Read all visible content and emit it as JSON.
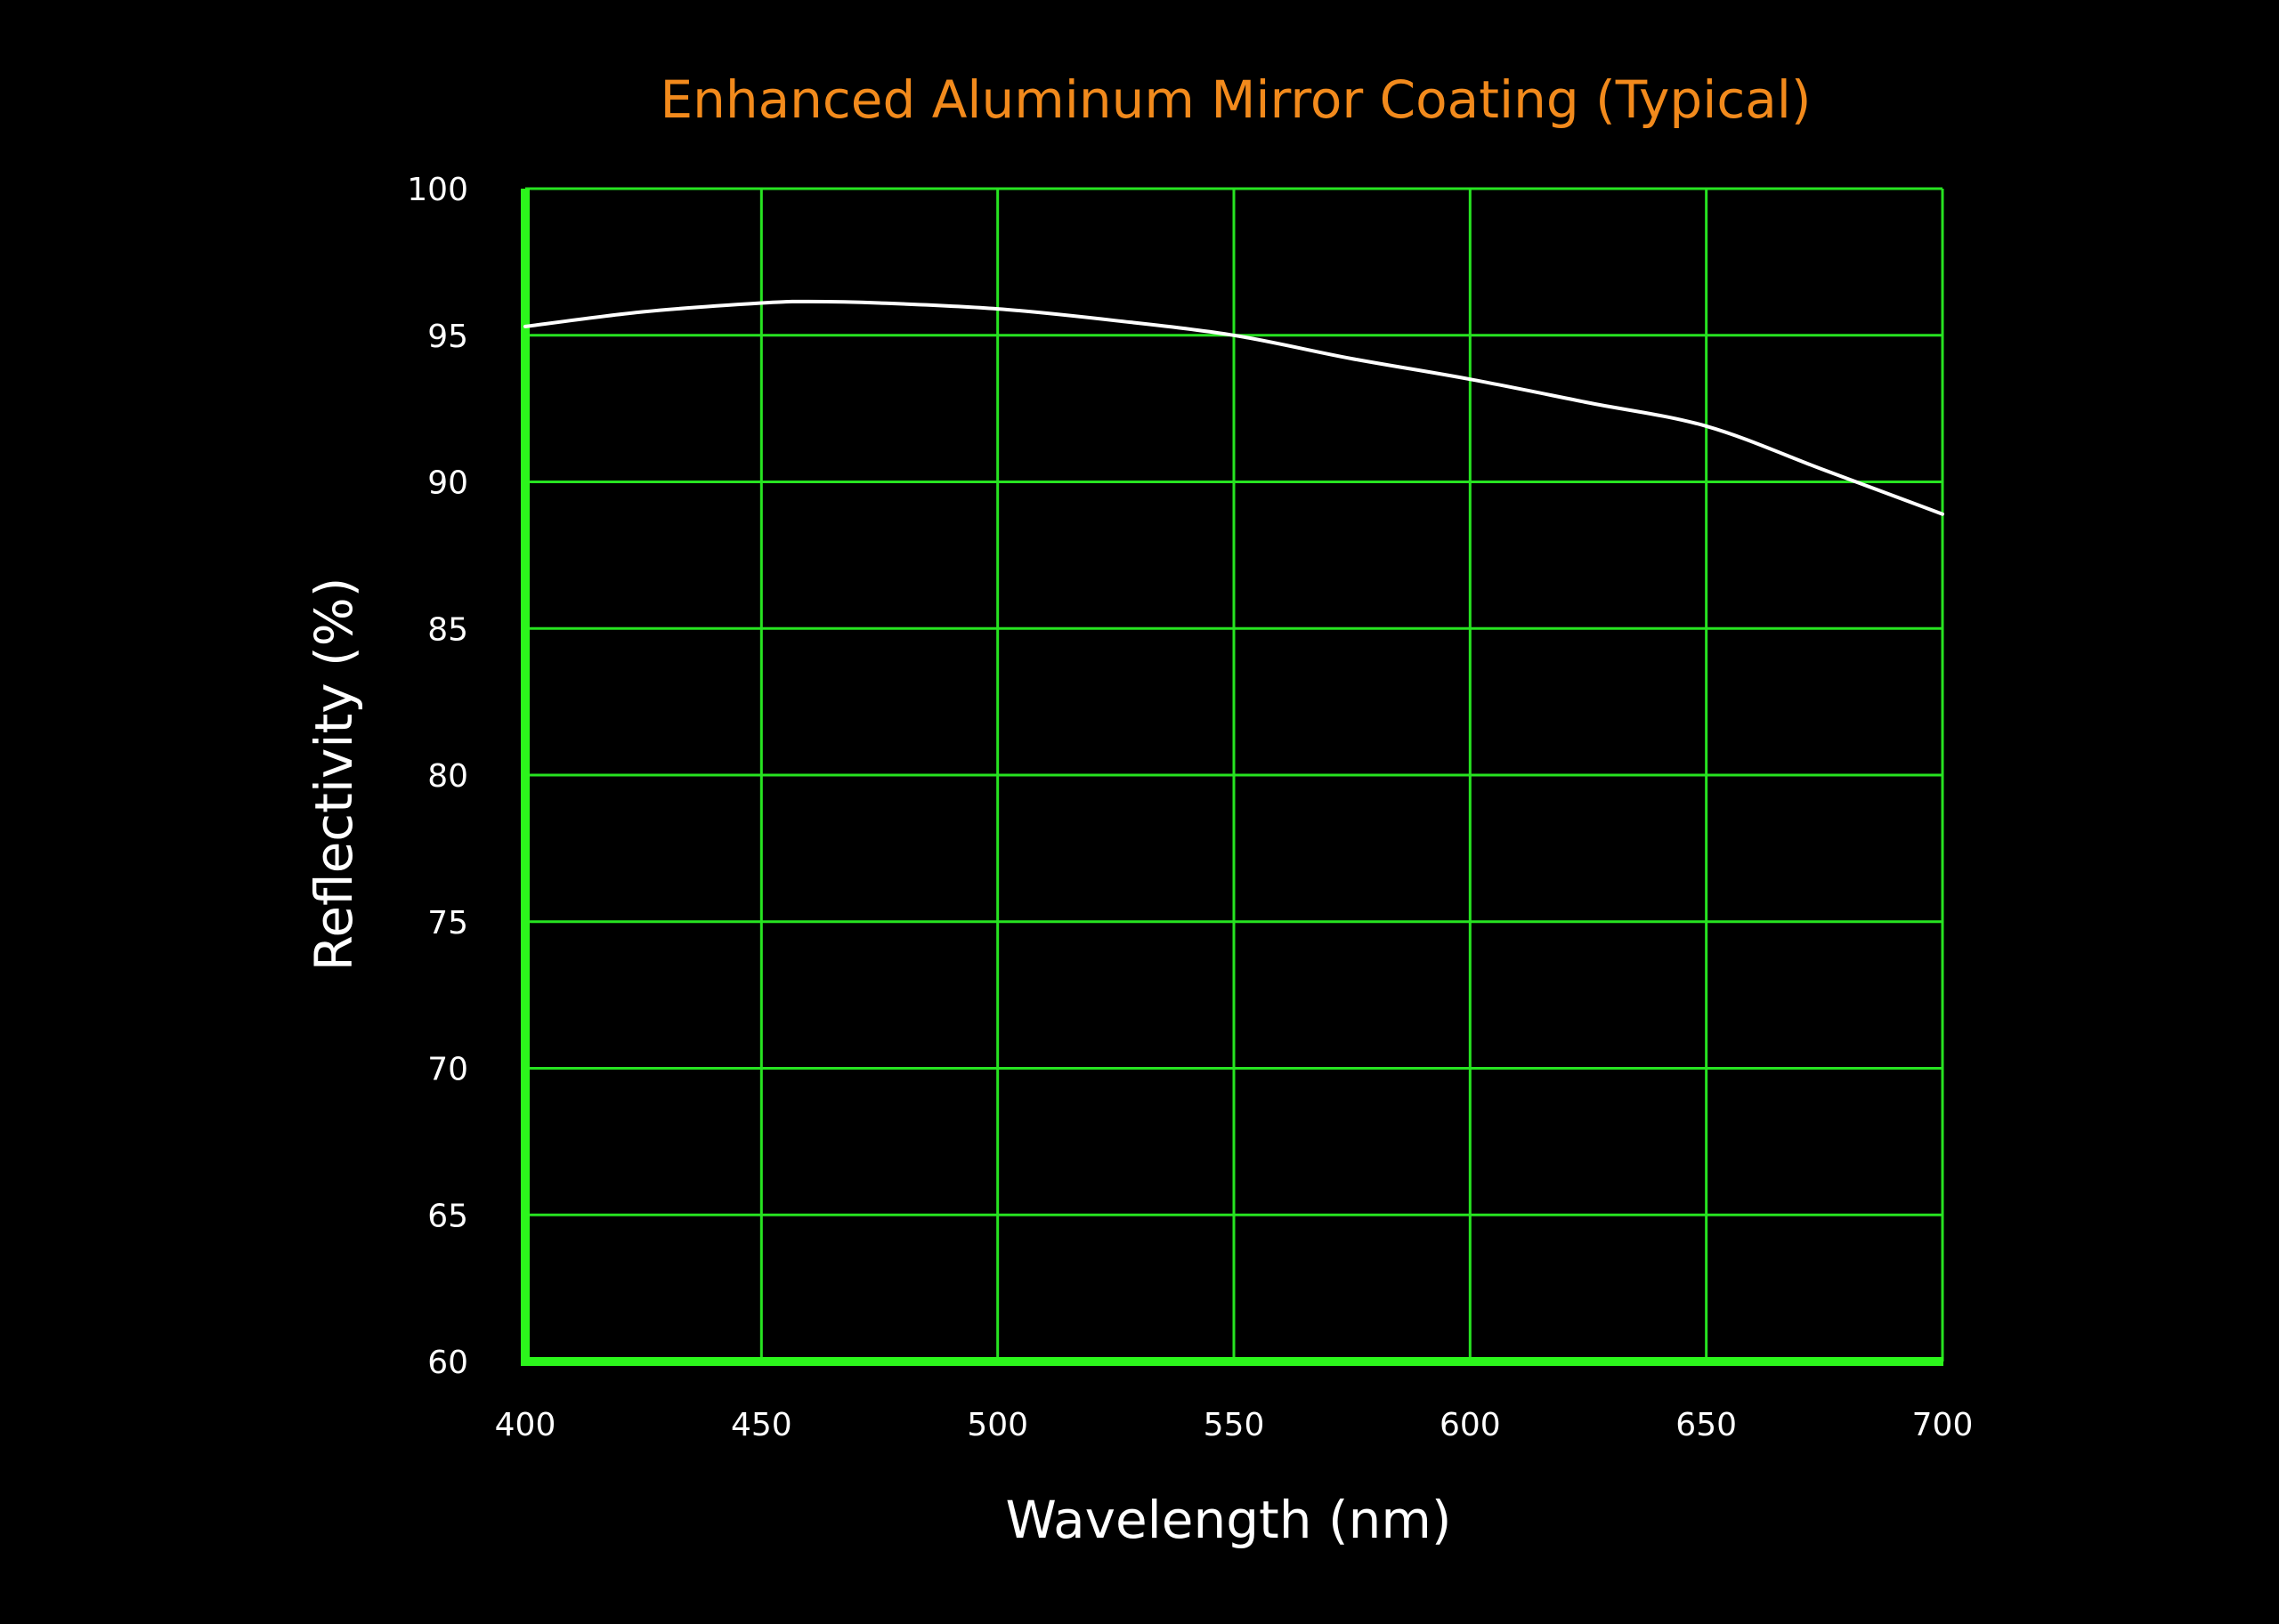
{
  "chart_data": {
    "type": "line",
    "title": "Enhanced Aluminum Mirror Coating (Typical)",
    "xlabel": "Wavelength (nm)",
    "ylabel": "Reflectivity (%)",
    "xlim": [
      400,
      700
    ],
    "ylim": [
      60,
      100
    ],
    "x_ticks": [
      400,
      450,
      500,
      550,
      600,
      650,
      700
    ],
    "y_ticks": [
      60,
      65,
      70,
      75,
      80,
      85,
      90,
      95,
      100
    ],
    "grid": true,
    "series": [
      {
        "x": [
          400,
          425,
          450,
          460,
          475,
          500,
          525,
          550,
          575,
          600,
          625,
          650,
          675,
          700
        ],
        "y": [
          95.3,
          95.8,
          96.1,
          96.15,
          96.1,
          95.9,
          95.5,
          95.0,
          94.2,
          93.5,
          92.7,
          91.9,
          90.4,
          88.9
        ]
      }
    ],
    "colors": {
      "background": "#000000",
      "grid": "#27e321",
      "axis": "#2cf51c",
      "title": "#f28a1c",
      "text": "#ffffff",
      "series": "#ffffff"
    }
  }
}
